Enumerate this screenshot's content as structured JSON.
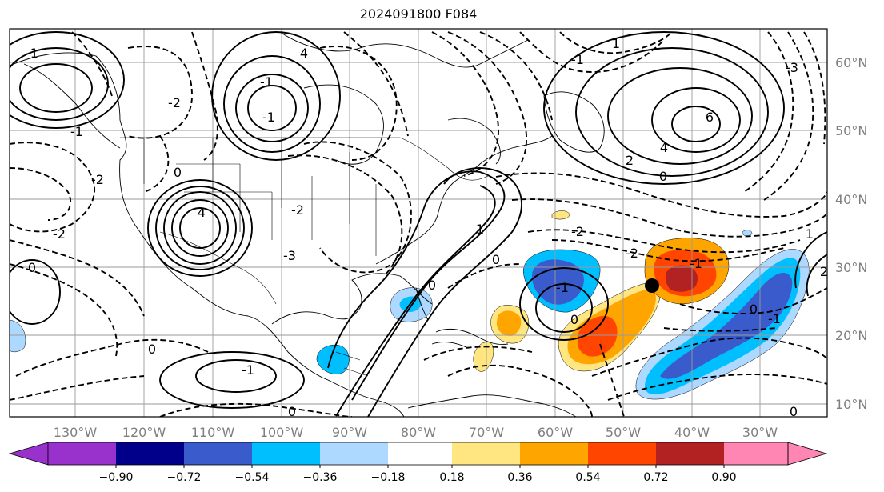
{
  "title": "2024091800 F084",
  "map": {
    "lon_labels": [
      "130°W",
      "120°W",
      "110°W",
      "100°W",
      "90°W",
      "80°W",
      "70°W",
      "60°W",
      "50°W",
      "40°W",
      "30°W"
    ],
    "lat_labels": [
      "60°N",
      "50°N",
      "40°N",
      "30°N",
      "20°N",
      "10°N"
    ],
    "contour_labels": [
      "4",
      "0",
      "-2",
      "-2",
      "0",
      "-1",
      "0",
      "-2",
      "0",
      "0",
      "1",
      "-1",
      "0",
      "-2",
      "-2",
      "-1",
      "6",
      "4",
      "2",
      "0",
      "-1",
      "0",
      "-1",
      "4",
      "-1",
      "0",
      "-2",
      "-1",
      "1",
      "-1",
      "1",
      "-1",
      "2",
      "-3",
      "0",
      "-3"
    ],
    "marker": "black-dot",
    "colors": {
      "neg_lt_-0.90": "#9932cc",
      "neg_-0.90_-0.72": "#00008b",
      "neg_-0.72_-0.54": "#3a5bcc",
      "neg_-0.54_-0.36": "#00bfff",
      "neg_-0.36_-0.18": "#add8ff",
      "neutral": "#ffffff",
      "pos_0.18_0.36": "#ffe680",
      "pos_0.36_0.54": "#ffa500",
      "pos_0.54_0.72": "#ff4500",
      "pos_0.72_0.90": "#b22222",
      "pos_gt_0.90": "#ff85b3"
    }
  },
  "colorbar": {
    "ticks": [
      "−0.90",
      "−0.72",
      "−0.54",
      "−0.36",
      "−0.18",
      "0.18",
      "0.36",
      "0.54",
      "0.72",
      "0.90"
    ]
  }
}
